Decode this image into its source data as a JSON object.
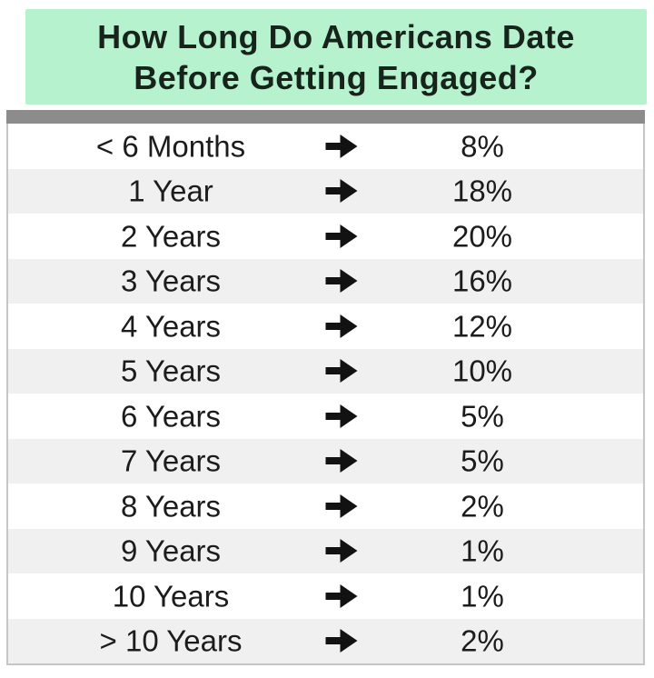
{
  "header": {
    "title_line1": "How Long Do Americans Date",
    "title_line2": "Before Getting Engaged?"
  },
  "table": {
    "rows": [
      {
        "label": "< 6 Months",
        "value": "8%"
      },
      {
        "label": "1 Year",
        "value": "18%"
      },
      {
        "label": "2 Years",
        "value": "20%"
      },
      {
        "label": "3 Years",
        "value": "16%"
      },
      {
        "label": "4 Years",
        "value": "12%"
      },
      {
        "label": "5 Years",
        "value": "10%"
      },
      {
        "label": "6 Years",
        "value": "5%"
      },
      {
        "label": "7 Years",
        "value": "5%"
      },
      {
        "label": "8 Years",
        "value": "2%"
      },
      {
        "label": "9 Years",
        "value": "1%"
      },
      {
        "label": "10 Years",
        "value": "1%"
      },
      {
        "label": "> 10 Years",
        "value": "2%"
      }
    ],
    "arrow_icon": "heavy-right-arrow"
  },
  "colors": {
    "header_green": "#b6f2cd",
    "divider_gray": "#8c8c8c",
    "stripe_gray": "#f0f0f0",
    "border_gray": "#c6c6c6",
    "text_dark": "#1c1c1c",
    "title_dark": "#17241c"
  },
  "chart_data": {
    "type": "table",
    "title": "How Long Do Americans Date Before Getting Engaged?",
    "categories": [
      "< 6 Months",
      "1 Year",
      "2 Years",
      "3 Years",
      "4 Years",
      "5 Years",
      "6 Years",
      "7 Years",
      "8 Years",
      "9 Years",
      "10 Years",
      "> 10 Years"
    ],
    "values": [
      8,
      18,
      20,
      16,
      12,
      10,
      5,
      5,
      2,
      1,
      1,
      2
    ],
    "unit": "%",
    "columns": [
      "duration",
      "percentage"
    ]
  }
}
